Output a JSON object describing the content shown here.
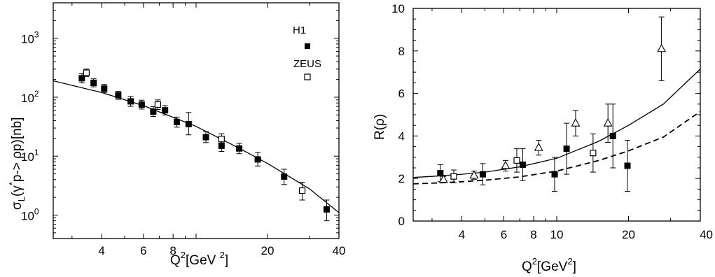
{
  "chart_data": [
    {
      "type": "scatter",
      "xscale": "log",
      "yscale": "log",
      "xlim": [
        2.5,
        40
      ],
      "ylim": [
        0.4,
        4000
      ],
      "xticks": [
        4,
        6,
        8,
        20,
        40
      ],
      "xtick_labels": [
        "4",
        "6",
        "8",
        "20",
        "40"
      ],
      "yticks": [
        1,
        10,
        100,
        1000
      ],
      "ytick_labels": {
        "base": "10",
        "exponents": [
          "0",
          "1",
          "2",
          "3"
        ]
      },
      "xlabel": {
        "main": "Q",
        "sup": "2",
        "rest": "[GeV ",
        "sup2": "2",
        "end": "]"
      },
      "ylabel": {
        "sigma": "σ",
        "sub": "L",
        "open": "(γ",
        "star": "*",
        "rest": "p-> ρp)[nb]"
      },
      "grid": false,
      "legend": [
        {
          "name": "H1",
          "marker": "filled-square"
        },
        {
          "name": "ZEUS",
          "marker": "open-square"
        }
      ],
      "series": [
        {
          "name": "H1",
          "marker": "filled-square",
          "points": [
            {
              "x": 3.3,
              "y": 210,
              "lo": 175,
              "hi": 250
            },
            {
              "x": 3.7,
              "y": 175,
              "lo": 150,
              "hi": 205
            },
            {
              "x": 4.1,
              "y": 140,
              "lo": 120,
              "hi": 165
            },
            {
              "x": 4.7,
              "y": 108,
              "lo": 92,
              "hi": 126
            },
            {
              "x": 5.3,
              "y": 85,
              "lo": 70,
              "hi": 103
            },
            {
              "x": 5.9,
              "y": 75,
              "lo": 63,
              "hi": 89
            },
            {
              "x": 6.6,
              "y": 57,
              "lo": 47,
              "hi": 69
            },
            {
              "x": 7.4,
              "y": 60,
              "lo": 50,
              "hi": 72
            },
            {
              "x": 8.3,
              "y": 38,
              "lo": 31,
              "hi": 46
            },
            {
              "x": 9.3,
              "y": 35,
              "lo": 23,
              "hi": 55
            },
            {
              "x": 11.0,
              "y": 21,
              "lo": 17,
              "hi": 26
            },
            {
              "x": 12.8,
              "y": 15,
              "lo": 12,
              "hi": 18.5
            },
            {
              "x": 15.2,
              "y": 13.5,
              "lo": 11,
              "hi": 16.5
            },
            {
              "x": 18.2,
              "y": 8.8,
              "lo": 6.8,
              "hi": 11.5
            },
            {
              "x": 23.5,
              "y": 4.5,
              "lo": 3.3,
              "hi": 6.0
            },
            {
              "x": 35.5,
              "y": 1.25,
              "lo": 0.8,
              "hi": 1.8
            }
          ]
        },
        {
          "name": "ZEUS",
          "marker": "open-square",
          "points": [
            {
              "x": 3.45,
              "y": 260,
              "lo": 225,
              "hi": 300
            },
            {
              "x": 6.9,
              "y": 75,
              "lo": 62,
              "hi": 90
            },
            {
              "x": 12.8,
              "y": 19.5,
              "lo": 16,
              "hi": 24
            },
            {
              "x": 28.0,
              "y": 2.6,
              "lo": 1.8,
              "hi": 3.6
            }
          ]
        },
        {
          "name": "",
          "type": "line",
          "style": "solid",
          "x": [
            2.5,
            4,
            6,
            10,
            15,
            20,
            30,
            40
          ],
          "y": [
            190,
            120,
            72,
            32,
            14,
            7.5,
            2.8,
            1.1
          ]
        }
      ]
    },
    {
      "type": "scatter",
      "xscale": "log",
      "yscale": "linear",
      "xlim": [
        2.5,
        40
      ],
      "ylim": [
        0,
        10
      ],
      "xticks": [
        4,
        6,
        8,
        10,
        20,
        40
      ],
      "xtick_labels": [
        "4",
        "6",
        "8",
        "10",
        "20",
        "40"
      ],
      "yticks": [
        0,
        2,
        4,
        6,
        8,
        10
      ],
      "ytick_labels": [
        "0",
        "2",
        "4",
        "6",
        "8",
        "10"
      ],
      "xlabel": {
        "main": "Q",
        "sup": "2",
        "rest": "[GeV",
        "sup2": "2",
        "end": "]"
      },
      "ylabel": "R(ρ)",
      "grid": false,
      "series": [
        {
          "name": "",
          "marker": "filled-square",
          "points": [
            {
              "x": 3.25,
              "y": 2.25,
              "lo": 1.85,
              "hi": 2.65
            },
            {
              "x": 4.9,
              "y": 2.2,
              "lo": 1.7,
              "hi": 2.7
            },
            {
              "x": 7.2,
              "y": 2.65,
              "lo": 1.9,
              "hi": 3.4
            },
            {
              "x": 9.8,
              "y": 2.2,
              "lo": 1.4,
              "hi": 3.0
            },
            {
              "x": 11.0,
              "y": 3.4,
              "lo": 2.2,
              "hi": 4.6
            },
            {
              "x": 17.2,
              "y": 4.0,
              "lo": 2.5,
              "hi": 5.5
            },
            {
              "x": 19.8,
              "y": 2.6,
              "lo": 1.4,
              "hi": 3.8
            }
          ]
        },
        {
          "name": "",
          "marker": "open-square",
          "points": [
            {
              "x": 3.7,
              "y": 2.1,
              "lo": 1.8,
              "hi": 2.4
            },
            {
              "x": 6.8,
              "y": 2.85,
              "lo": 2.3,
              "hi": 3.4
            },
            {
              "x": 14.2,
              "y": 3.2,
              "lo": 2.3,
              "hi": 4.1
            }
          ]
        },
        {
          "name": "",
          "marker": "open-triangle",
          "points": [
            {
              "x": 3.35,
              "y": 1.95,
              "lo": 1.8,
              "hi": 2.1
            },
            {
              "x": 4.5,
              "y": 2.15,
              "lo": 1.95,
              "hi": 2.35
            },
            {
              "x": 6.1,
              "y": 2.6,
              "lo": 2.35,
              "hi": 2.85
            },
            {
              "x": 8.4,
              "y": 3.45,
              "lo": 3.1,
              "hi": 3.8
            },
            {
              "x": 12.0,
              "y": 4.6,
              "lo": 4.0,
              "hi": 5.2
            },
            {
              "x": 16.4,
              "y": 4.6,
              "lo": 3.7,
              "hi": 5.5
            },
            {
              "x": 27.5,
              "y": 8.1,
              "lo": 6.6,
              "hi": 9.6
            }
          ]
        },
        {
          "name": "",
          "type": "line",
          "style": "solid",
          "x": [
            2.5,
            3,
            4,
            5,
            7,
            10,
            15,
            20,
            28,
            40
          ],
          "y": [
            2.05,
            2.1,
            2.2,
            2.3,
            2.55,
            2.95,
            3.75,
            4.5,
            5.5,
            7.15
          ]
        },
        {
          "name": "",
          "type": "line",
          "style": "dashed",
          "x": [
            2.5,
            3,
            4,
            5,
            7,
            10,
            15,
            20,
            28,
            40
          ],
          "y": [
            1.75,
            1.78,
            1.85,
            1.92,
            2.08,
            2.35,
            2.85,
            3.3,
            3.95,
            5.15
          ]
        }
      ]
    }
  ]
}
